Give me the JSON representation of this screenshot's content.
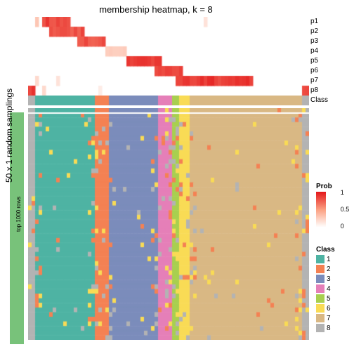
{
  "title": "membership heatmap, k = 8",
  "ylabel_main": "50 x 1 random samplings",
  "ylabel_sub": "top 1000 rows",
  "sidebar_color": "#78c27a",
  "row_labels": [
    "p1",
    "p2",
    "p3",
    "p4",
    "p5",
    "p6",
    "p7",
    "p8",
    "Class"
  ],
  "n_cols": 80,
  "prob_rows": {
    "type": "heatmap",
    "colormap": {
      "low": "#ffffff",
      "mid": "#fca082",
      "high": "#e41a1c"
    },
    "rows": 8,
    "diagonal_blocks": [
      {
        "row": 0,
        "start": 4,
        "end": 12,
        "intensity": 0.9
      },
      {
        "row": 1,
        "start": 6,
        "end": 16,
        "intensity": 0.85
      },
      {
        "row": 2,
        "start": 14,
        "end": 22,
        "intensity": 0.85
      },
      {
        "row": 3,
        "start": 22,
        "end": 28,
        "intensity": 0.3
      },
      {
        "row": 4,
        "start": 28,
        "end": 38,
        "intensity": 0.95
      },
      {
        "row": 5,
        "start": 36,
        "end": 44,
        "intensity": 0.9
      },
      {
        "row": 6,
        "start": 42,
        "end": 64,
        "intensity": 0.95
      },
      {
        "row": 7,
        "start": 0,
        "end": 2,
        "intensity": 0.95
      },
      {
        "row": 7,
        "start": 78,
        "end": 80,
        "intensity": 0.95
      }
    ],
    "speckles": [
      {
        "row": 0,
        "col": 2,
        "v": 0.3
      },
      {
        "row": 0,
        "col": 50,
        "v": 0.15
      },
      {
        "row": 6,
        "col": 2,
        "v": 0.2
      },
      {
        "row": 6,
        "col": 8,
        "v": 0.15
      },
      {
        "row": 7,
        "col": 4,
        "v": 0.2
      },
      {
        "row": 7,
        "col": 20,
        "v": 0.1
      }
    ]
  },
  "class_colors": [
    "#4eb3a3",
    "#f48153",
    "#7b8cbb",
    "#e57fb8",
    "#a8cf4f",
    "#f9db55",
    "#d9b884",
    "#b3b3b3"
  ],
  "class_assignment_bands": [
    {
      "class": 7,
      "start": 0,
      "end": 2
    },
    {
      "class": 0,
      "start": 2,
      "end": 19
    },
    {
      "class": 1,
      "start": 19,
      "end": 23
    },
    {
      "class": 2,
      "start": 23,
      "end": 37
    },
    {
      "class": 3,
      "start": 37,
      "end": 41
    },
    {
      "class": 4,
      "start": 41,
      "end": 43
    },
    {
      "class": 5,
      "start": 43,
      "end": 46
    },
    {
      "class": 6,
      "start": 46,
      "end": 78
    },
    {
      "class": 7,
      "start": 78,
      "end": 80
    }
  ],
  "sampling_noise": {
    "rows": 50,
    "flip_prob_edge": 0.18,
    "noise_colors_idx": [
      7,
      5,
      1
    ]
  },
  "legends": {
    "prob": {
      "title": "Prob",
      "ticks": [
        "1",
        "0.5",
        "0"
      ]
    },
    "class": {
      "title": "Class",
      "labels": [
        "1",
        "2",
        "3",
        "4",
        "5",
        "6",
        "7",
        "8"
      ]
    }
  }
}
